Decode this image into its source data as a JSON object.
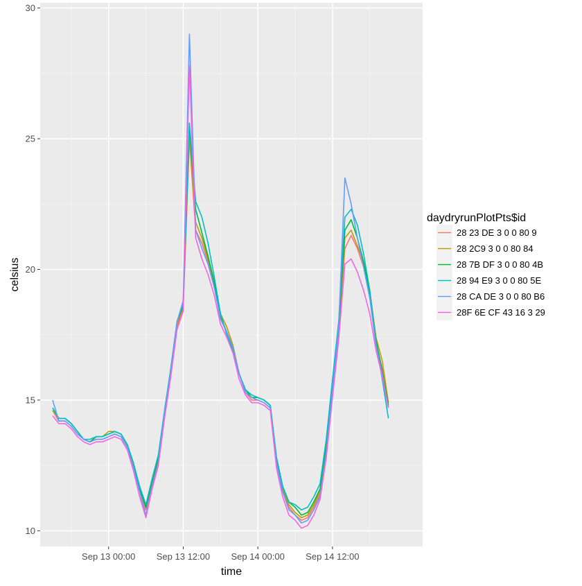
{
  "chart_data": {
    "type": "line",
    "xlabel": "time",
    "ylabel": "celsius",
    "x_tick_labels": [
      "Sep 13 00:00",
      "Sep 13 12:00",
      "Sep 14 00:00",
      "Sep 14 12:00"
    ],
    "y_tick_labels": [
      "10",
      "15",
      "20",
      "25",
      "30"
    ],
    "xlim": [
      "Sep 12 13:00",
      "Sep 15 02:30"
    ],
    "ylim": [
      9.4,
      30.2
    ],
    "grid": true,
    "legend": {
      "title": "daydryrunPlotPts$id",
      "position": "right"
    },
    "x": [
      "Sep 12 15:00",
      "Sep 12 16:00",
      "Sep 12 17:00",
      "Sep 12 18:00",
      "Sep 12 19:00",
      "Sep 12 20:00",
      "Sep 12 21:00",
      "Sep 12 22:00",
      "Sep 12 23:00",
      "Sep 13 00:00",
      "Sep 13 01:00",
      "Sep 13 02:00",
      "Sep 13 03:00",
      "Sep 13 04:00",
      "Sep 13 05:00",
      "Sep 13 06:00",
      "Sep 13 07:00",
      "Sep 13 08:00",
      "Sep 13 09:00",
      "Sep 13 10:00",
      "Sep 13 11:00",
      "Sep 13 12:00",
      "Sep 13 13:00",
      "Sep 13 14:00",
      "Sep 13 15:00",
      "Sep 13 16:00",
      "Sep 13 17:00",
      "Sep 13 18:00",
      "Sep 13 19:00",
      "Sep 13 20:00",
      "Sep 13 21:00",
      "Sep 13 22:00",
      "Sep 13 23:00",
      "Sep 14 00:00",
      "Sep 14 01:00",
      "Sep 14 02:00",
      "Sep 14 03:00",
      "Sep 14 04:00",
      "Sep 14 05:00",
      "Sep 14 06:00",
      "Sep 14 07:00",
      "Sep 14 08:00",
      "Sep 14 09:00",
      "Sep 14 10:00",
      "Sep 14 11:00",
      "Sep 14 12:00",
      "Sep 14 13:00",
      "Sep 14 14:00",
      "Sep 14 15:00",
      "Sep 14 16:00",
      "Sep 14 17:00",
      "Sep 14 18:00",
      "Sep 14 19:00",
      "Sep 14 20:00",
      "Sep 14 21:00"
    ],
    "series": [
      {
        "name": "28 23 DE 3 0 0 80 9",
        "color": "#F8766D",
        "values": [
          14.6,
          14.2,
          14.2,
          14.0,
          13.7,
          13.5,
          13.4,
          13.5,
          13.5,
          13.6,
          13.7,
          13.6,
          13.2,
          12.5,
          11.5,
          10.8,
          11.8,
          12.7,
          14.4,
          16.0,
          17.8,
          18.5,
          25.0,
          21.5,
          21.0,
          20.3,
          19.4,
          18.1,
          17.6,
          17.0,
          16.0,
          15.3,
          15.0,
          15.0,
          14.9,
          14.7,
          12.6,
          11.5,
          10.9,
          10.6,
          10.4,
          10.5,
          10.9,
          11.4,
          13.0,
          15.3,
          17.6,
          20.8,
          21.3,
          20.8,
          20.1,
          19.0,
          17.2,
          16.2,
          14.8
        ]
      },
      {
        "name": "28 2C9 3 0 0 80 84",
        "color": "#B79F00",
        "values": [
          14.6,
          14.3,
          14.3,
          14.1,
          13.8,
          13.5,
          13.4,
          13.6,
          13.6,
          13.8,
          13.8,
          13.7,
          13.3,
          12.5,
          11.6,
          10.9,
          11.9,
          12.8,
          14.5,
          16.1,
          17.9,
          18.6,
          25.3,
          21.8,
          21.2,
          20.4,
          19.5,
          18.3,
          17.8,
          17.1,
          16.0,
          15.4,
          15.1,
          15.1,
          15.0,
          14.8,
          12.7,
          11.6,
          11.0,
          10.7,
          10.5,
          10.6,
          11.0,
          11.5,
          13.1,
          15.4,
          17.7,
          21.2,
          21.5,
          20.9,
          20.3,
          19.2,
          17.4,
          16.5,
          14.9
        ]
      },
      {
        "name": "28 7B DF 3 0 0 80 4B",
        "color": "#00BA38",
        "values": [
          14.7,
          14.3,
          14.3,
          14.1,
          13.8,
          13.5,
          13.4,
          13.6,
          13.6,
          13.7,
          13.8,
          13.7,
          13.3,
          12.6,
          11.6,
          10.9,
          11.9,
          12.8,
          14.6,
          16.2,
          18.0,
          18.6,
          25.5,
          22.3,
          21.4,
          20.5,
          19.5,
          18.2,
          17.6,
          17.0,
          16.0,
          15.4,
          15.1,
          15.1,
          15.0,
          14.8,
          12.8,
          11.7,
          11.1,
          10.9,
          10.6,
          10.7,
          11.1,
          11.6,
          13.3,
          15.6,
          17.8,
          21.5,
          21.9,
          21.2,
          20.3,
          19.1,
          17.3,
          16.1,
          14.8
        ]
      },
      {
        "name": "28 94 E9 3 0 0 80 5E",
        "color": "#00BFC4",
        "values": [
          14.7,
          14.3,
          14.3,
          14.1,
          13.8,
          13.5,
          13.5,
          13.6,
          13.6,
          13.7,
          13.8,
          13.7,
          13.3,
          12.6,
          11.7,
          11.0,
          12.0,
          12.9,
          14.6,
          16.2,
          18.0,
          18.7,
          25.6,
          22.6,
          22.0,
          21.0,
          19.7,
          18.3,
          17.5,
          16.9,
          16.0,
          15.4,
          15.2,
          15.1,
          15.0,
          14.8,
          12.8,
          11.7,
          11.1,
          11.0,
          10.8,
          10.9,
          11.3,
          11.8,
          13.5,
          15.8,
          18.0,
          22.0,
          22.3,
          21.7,
          20.6,
          19.2,
          17.2,
          15.8,
          14.3
        ]
      },
      {
        "name": "28 CA DE 3 0 0 80 B6",
        "color": "#619CFF",
        "values": [
          15.0,
          14.2,
          14.2,
          14.0,
          13.7,
          13.5,
          13.4,
          13.5,
          13.5,
          13.6,
          13.7,
          13.6,
          13.2,
          12.4,
          11.5,
          10.6,
          11.7,
          12.6,
          14.5,
          16.1,
          18.0,
          18.8,
          29.0,
          21.5,
          20.8,
          20.2,
          19.3,
          18.1,
          17.6,
          17.0,
          16.0,
          15.3,
          15.1,
          15.0,
          14.9,
          14.7,
          12.6,
          11.5,
          10.8,
          10.6,
          10.3,
          10.4,
          10.8,
          11.3,
          13.0,
          15.4,
          17.8,
          23.5,
          22.5,
          21.2,
          20.1,
          18.9,
          17.1,
          16.0,
          14.7
        ]
      },
      {
        "name": "28F 6E CF 43 16 3 29",
        "color": "#F564E3",
        "values": [
          14.4,
          14.1,
          14.1,
          13.9,
          13.6,
          13.4,
          13.3,
          13.4,
          13.4,
          13.5,
          13.6,
          13.5,
          13.1,
          12.3,
          11.3,
          10.5,
          11.6,
          12.5,
          14.3,
          15.9,
          17.7,
          18.4,
          27.8,
          21.2,
          20.4,
          19.8,
          19.0,
          17.9,
          17.4,
          16.8,
          15.8,
          15.2,
          14.9,
          14.9,
          14.8,
          14.6,
          12.4,
          11.3,
          10.6,
          10.4,
          10.1,
          10.2,
          10.6,
          11.2,
          12.8,
          15.1,
          17.3,
          20.2,
          20.4,
          19.9,
          19.2,
          18.3,
          16.9,
          15.9,
          14.7
        ]
      }
    ]
  }
}
